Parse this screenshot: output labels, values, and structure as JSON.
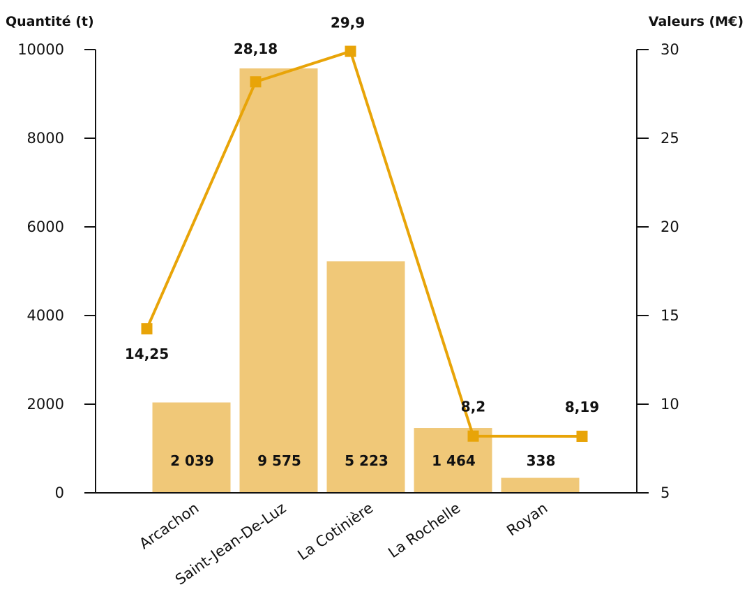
{
  "chart_data": {
    "type": "bar",
    "categories": [
      "Arcachon",
      "Saint-Jean-De-Luz",
      "La Cotinière",
      "La Rochelle",
      "Royan"
    ],
    "left_axis": {
      "title": "Quantité (t)",
      "ylim": [
        0,
        10000
      ],
      "ticks": [
        "0",
        "2000",
        "4000",
        "6000",
        "8000",
        "10000"
      ]
    },
    "right_axis": {
      "title": "Valeurs (M€)",
      "ylim": [
        5,
        30
      ],
      "ticks": [
        "5",
        "10",
        "15",
        "20",
        "25",
        "30"
      ]
    },
    "series": [
      {
        "type": "bar",
        "axis": "left",
        "values": [
          2039,
          9575,
          5223,
          1464,
          338
        ],
        "labels": [
          "2 039",
          "9 575",
          "5 223",
          "1 464",
          "338"
        ],
        "color": "#F0C878"
      },
      {
        "type": "line",
        "axis": "right",
        "values": [
          14.25,
          28.18,
          29.9,
          8.2,
          8.19
        ],
        "labels": [
          "14,25",
          "28,18",
          "29,9",
          "8,2",
          "8,19"
        ],
        "color": "#E8A408"
      }
    ],
    "grid": false,
    "legend": "none"
  }
}
